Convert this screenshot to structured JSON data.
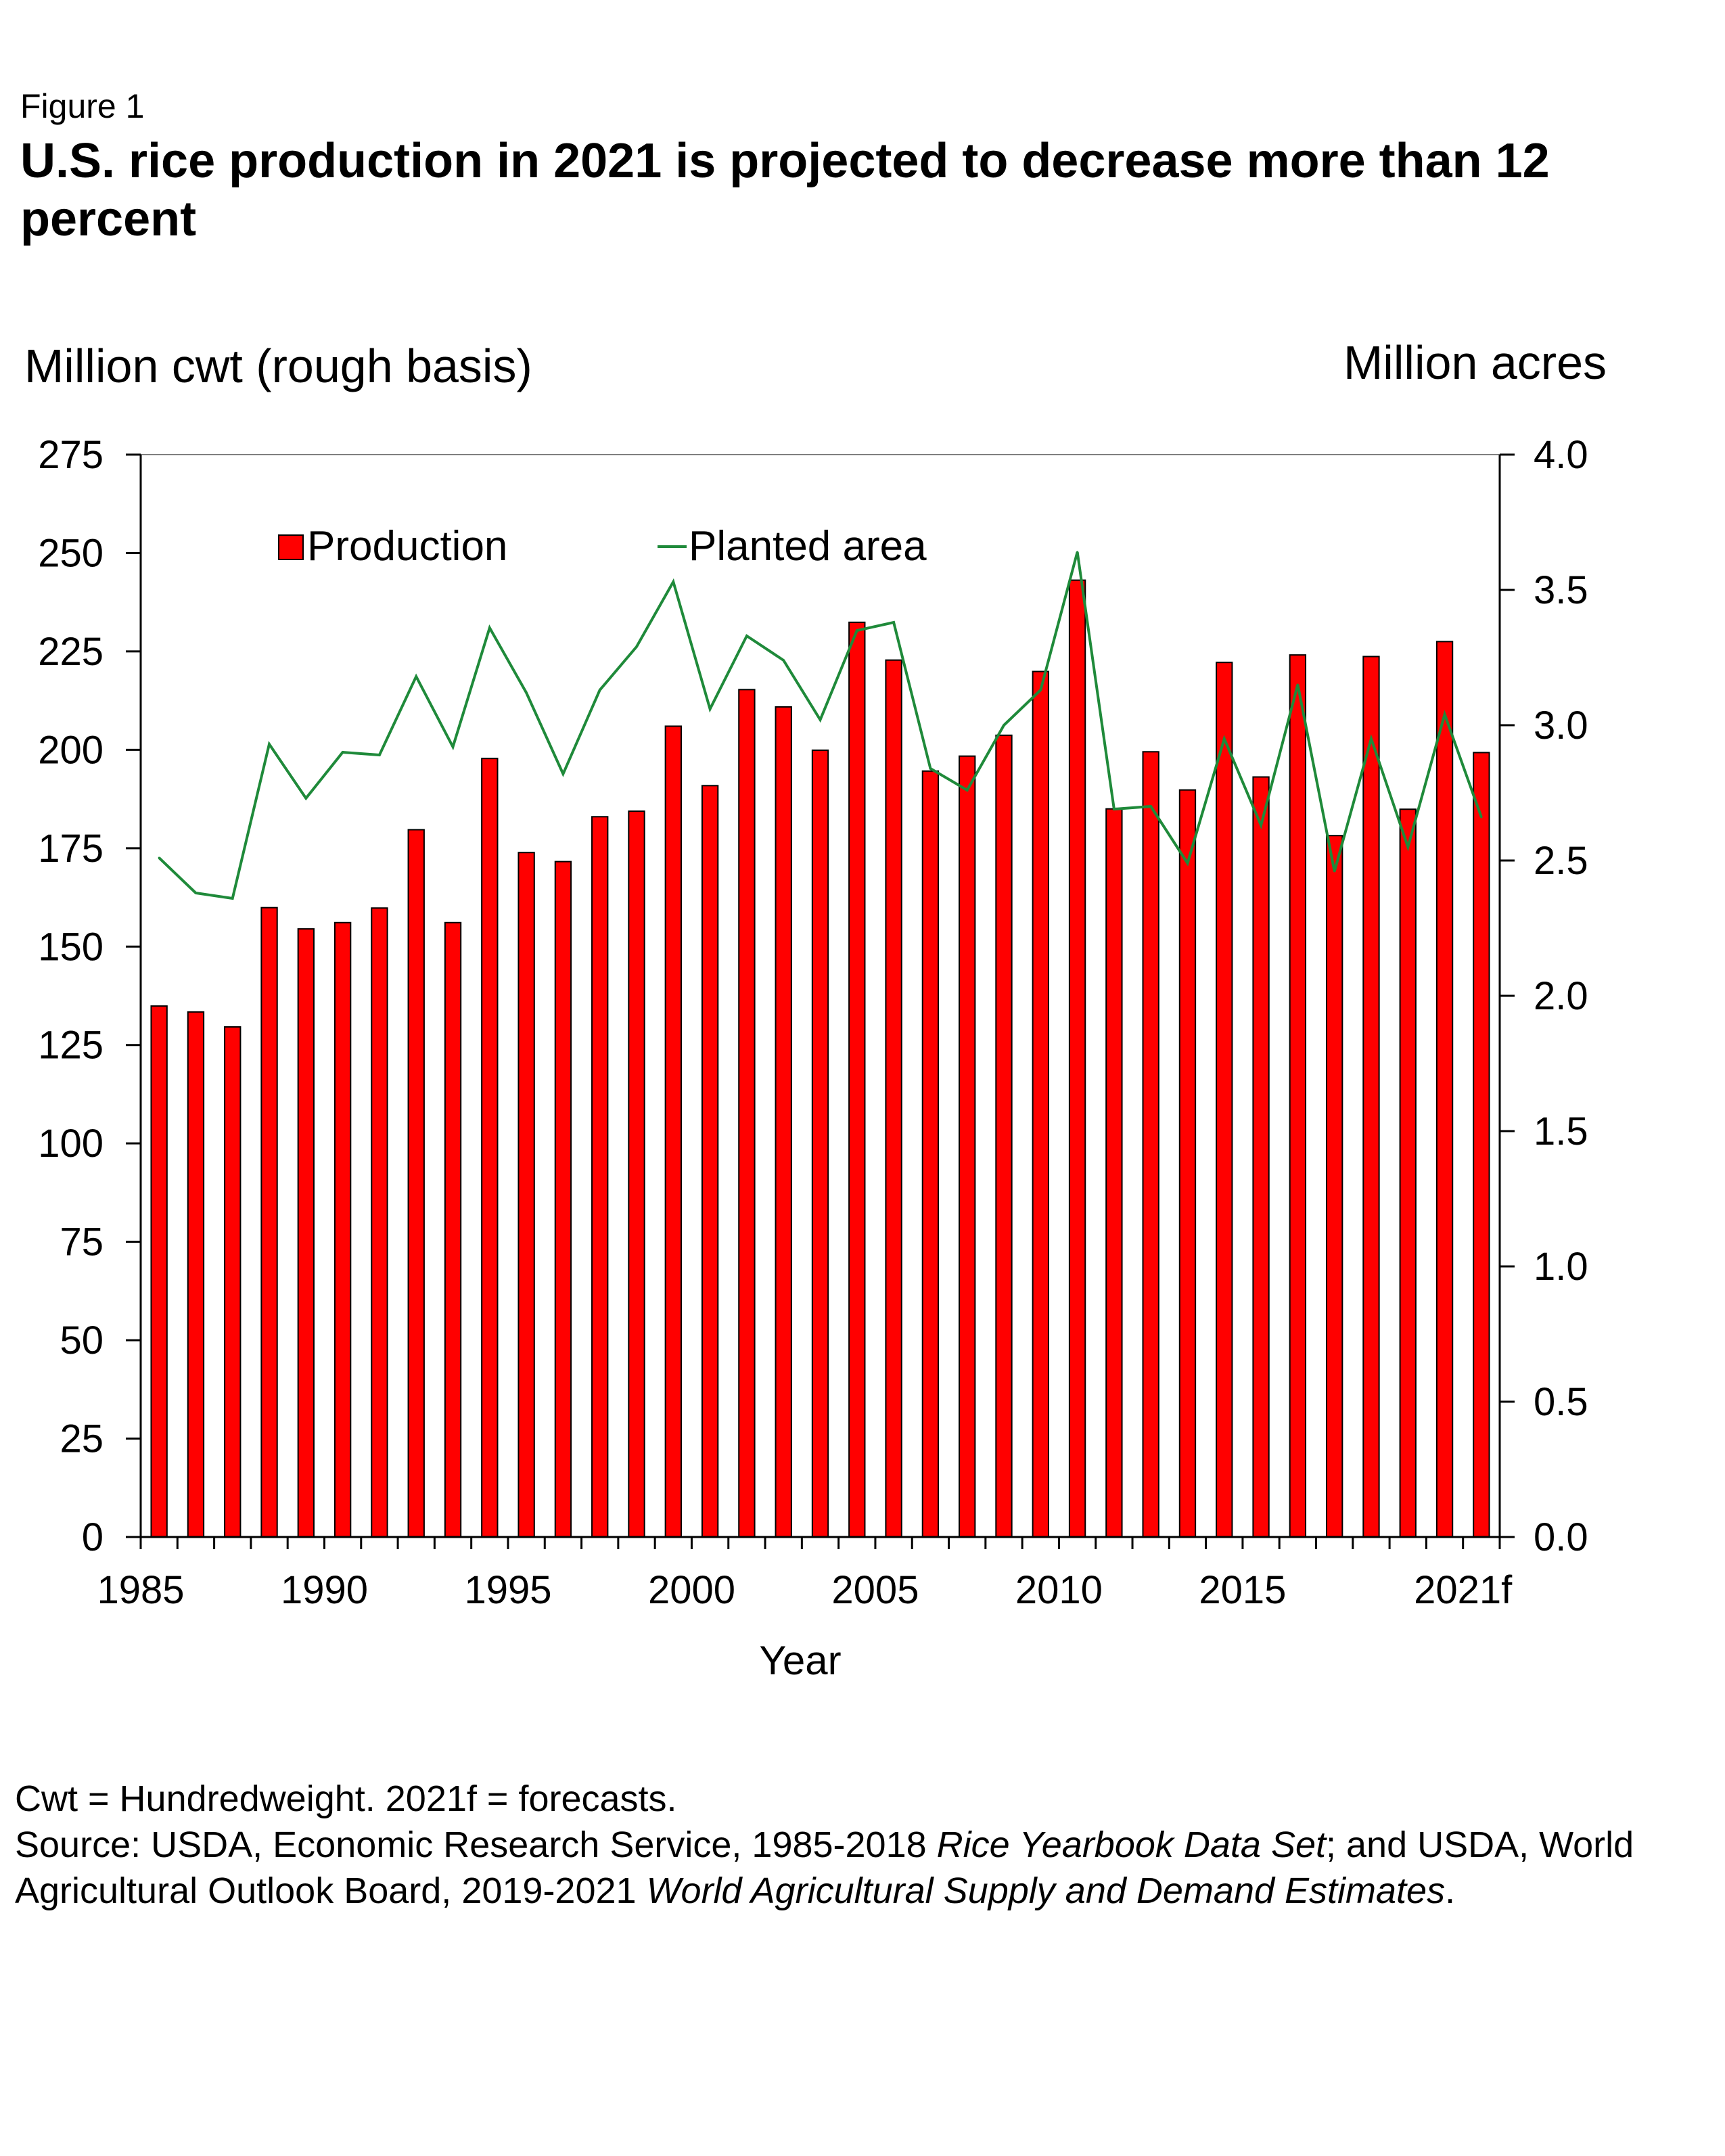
{
  "figure_label": "Figure 1",
  "title": "U.S. rice production in 2021 is projected to decrease more than 12 percent",
  "chart_data": {
    "type": "bar",
    "x": [
      "1985",
      "1986",
      "1987",
      "1988",
      "1989",
      "1990",
      "1991",
      "1992",
      "1993",
      "1994",
      "1995",
      "1996",
      "1997",
      "1998",
      "1999",
      "2000",
      "2001",
      "2002",
      "2003",
      "2004",
      "2005",
      "2006",
      "2007",
      "2008",
      "2009",
      "2010",
      "2011",
      "2012",
      "2013",
      "2014",
      "2015",
      "2016",
      "2017",
      "2018",
      "2019",
      "2020",
      "2021f"
    ],
    "xticks": [
      "1985",
      "1990",
      "1995",
      "2000",
      "2005",
      "2010",
      "2015",
      "2021f"
    ],
    "xlabel": "Year",
    "ylabel_left": "Million cwt (rough basis)",
    "ylabel_right": "Million acres",
    "ylim_left": [
      0,
      275
    ],
    "ylim_right": [
      0.0,
      4.0
    ],
    "yticks_left": [
      "0",
      "25",
      "50",
      "75",
      "100",
      "125",
      "150",
      "175",
      "200",
      "225",
      "250",
      "275"
    ],
    "yticks_right": [
      "0.0",
      "0.5",
      "1.0",
      "1.5",
      "2.0",
      "2.5",
      "3.0",
      "3.5",
      "4.0"
    ],
    "legend_position": "top-left",
    "series": [
      {
        "name": "Production",
        "type": "bar",
        "axis": "left",
        "color": "#ff0000",
        "values": [
          134.9,
          133.4,
          129.6,
          159.9,
          154.5,
          156.1,
          159.8,
          179.7,
          156.1,
          197.8,
          173.9,
          171.6,
          183.0,
          184.4,
          206.0,
          190.9,
          215.3,
          210.9,
          199.9,
          232.4,
          222.8,
          194.6,
          198.4,
          203.7,
          219.9,
          243.1,
          185.0,
          199.5,
          189.8,
          222.2,
          193.1,
          224.1,
          178.2,
          223.7,
          184.9,
          227.5,
          199.3
        ]
      },
      {
        "name": "Planted area",
        "type": "line",
        "axis": "right",
        "color": "#1f8a3a",
        "values": [
          2.51,
          2.38,
          2.36,
          2.93,
          2.73,
          2.9,
          2.89,
          3.18,
          2.92,
          3.36,
          3.12,
          2.82,
          3.13,
          3.29,
          3.53,
          3.06,
          3.33,
          3.24,
          3.02,
          3.35,
          3.38,
          2.84,
          2.76,
          3.0,
          3.13,
          3.64,
          2.69,
          2.7,
          2.49,
          2.95,
          2.63,
          3.15,
          2.46,
          2.95,
          2.55,
          3.04,
          2.66
        ]
      }
    ]
  },
  "notes": {
    "line1": "Cwt = Hundredweight.   2021f = forecasts.",
    "line2_a": "Source: USDA, Economic Research Service, 1985-2018 ",
    "line2_b": "Rice Yearbook Data Set",
    "line2_c": "; and USDA, World Agricultural Outlook Board, 2019-2021 ",
    "line2_d": "World Agricultural Supply and Demand Estimates",
    "line2_e": "."
  }
}
